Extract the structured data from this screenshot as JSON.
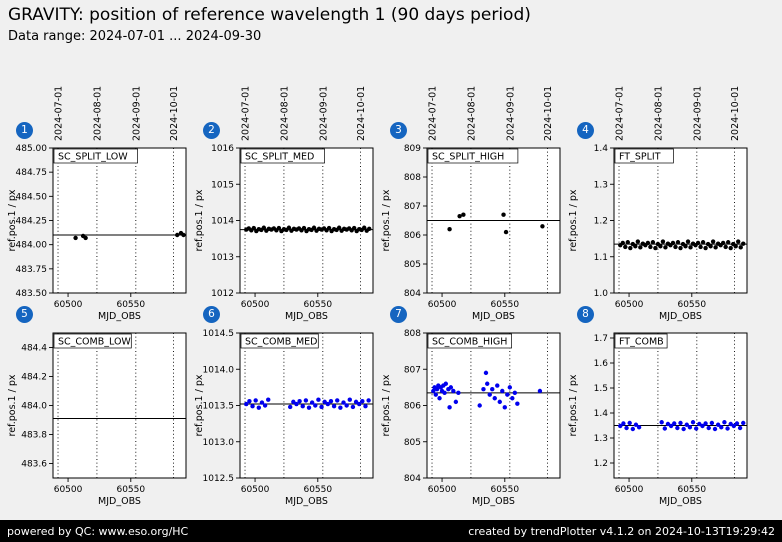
{
  "header": {
    "title": "GRAVITY: position of reference wavelength 1 (90 days period)",
    "subtitle": "Data range: 2024-07-01 ... 2024-09-30"
  },
  "footer": {
    "left": "powered by QC: www.eso.org/HC",
    "right": "created by trendPlotter v4.1.2 on 2024-10-13T19:29:42"
  },
  "colors": {
    "background": "#f0f0f0",
    "badge": "#1565c0",
    "top_row_points": "#000000",
    "bottom_row_points": "#0000ee",
    "footer_bg": "#000000",
    "footer_text": "#ffffff",
    "plot_bg": "#ffffff"
  },
  "axes": {
    "xlabel": "MJD_OBS",
    "ylabel": "ref.pos.1 / px",
    "xlim": [
      60488,
      60594
    ],
    "xticks": [
      60500,
      60550
    ],
    "xtick_labels": [
      "60500",
      "60550"
    ],
    "month_gridlines_mjd": [
      60492,
      60523,
      60554,
      60584
    ],
    "month_labels": [
      "2024-07-01",
      "2024-08-01",
      "2024-09-01",
      "2024-10-01"
    ],
    "grid": "vertical-dotted",
    "legend": "none"
  },
  "chart_data": [
    {
      "type": "scatter",
      "badge": "1",
      "label": "SC_SPLIT_LOW",
      "row": 0,
      "ylim": [
        483.5,
        485.0
      ],
      "ytick_vals": [
        485.0,
        484.75,
        484.5,
        484.25,
        484.0,
        483.75,
        483.5
      ],
      "ytick_labels": [
        "485.00",
        "484.75",
        "484.50",
        "484.25",
        "484.00",
        "483.75",
        "483.50"
      ],
      "line": 484.1,
      "color": "#000000",
      "points": [
        [
          60506,
          484.07
        ],
        [
          60512,
          484.09
        ],
        [
          60514,
          484.07
        ],
        [
          60587,
          484.1
        ],
        [
          60590,
          484.12
        ],
        [
          60592,
          484.1
        ]
      ]
    },
    {
      "type": "scatter",
      "badge": "2",
      "label": "SC_SPLIT_MED",
      "row": 0,
      "ylim": [
        1012,
        1016
      ],
      "ytick_vals": [
        1016,
        1015,
        1014,
        1013,
        1012
      ],
      "ytick_labels": [
        "1016",
        "1015",
        "1014",
        "1013",
        "1012"
      ],
      "line": 1013.75,
      "color": "#000000",
      "points": [
        [
          60493,
          1013.75
        ],
        [
          60495,
          1013.78
        ],
        [
          60497,
          1013.73
        ],
        [
          60499,
          1013.79
        ],
        [
          60501,
          1013.71
        ],
        [
          60503,
          1013.76
        ],
        [
          60505,
          1013.74
        ],
        [
          60507,
          1013.8
        ],
        [
          60509,
          1013.72
        ],
        [
          60511,
          1013.77
        ],
        [
          60513,
          1013.75
        ],
        [
          60515,
          1013.78
        ],
        [
          60517,
          1013.73
        ],
        [
          60519,
          1013.79
        ],
        [
          60521,
          1013.71
        ],
        [
          60523,
          1013.76
        ],
        [
          60525,
          1013.74
        ],
        [
          60527,
          1013.8
        ],
        [
          60529,
          1013.72
        ],
        [
          60531,
          1013.77
        ],
        [
          60533,
          1013.75
        ],
        [
          60535,
          1013.78
        ],
        [
          60537,
          1013.73
        ],
        [
          60539,
          1013.79
        ],
        [
          60541,
          1013.71
        ],
        [
          60543,
          1013.76
        ],
        [
          60545,
          1013.74
        ],
        [
          60547,
          1013.8
        ],
        [
          60549,
          1013.72
        ],
        [
          60551,
          1013.77
        ],
        [
          60553,
          1013.75
        ],
        [
          60555,
          1013.78
        ],
        [
          60557,
          1013.73
        ],
        [
          60559,
          1013.79
        ],
        [
          60561,
          1013.71
        ],
        [
          60563,
          1013.76
        ],
        [
          60565,
          1013.74
        ],
        [
          60567,
          1013.8
        ],
        [
          60569,
          1013.72
        ],
        [
          60571,
          1013.77
        ],
        [
          60573,
          1013.75
        ],
        [
          60575,
          1013.78
        ],
        [
          60577,
          1013.73
        ],
        [
          60579,
          1013.79
        ],
        [
          60581,
          1013.71
        ],
        [
          60583,
          1013.76
        ],
        [
          60585,
          1013.74
        ],
        [
          60587,
          1013.8
        ],
        [
          60589,
          1013.72
        ],
        [
          60591,
          1013.77
        ]
      ]
    },
    {
      "type": "scatter",
      "badge": "3",
      "label": "SC_SPLIT_HIGH",
      "row": 0,
      "ylim": [
        804,
        809
      ],
      "ytick_vals": [
        809,
        808,
        807,
        806,
        805,
        804
      ],
      "ytick_labels": [
        "809",
        "808",
        "807",
        "806",
        "805",
        "804"
      ],
      "line": 806.5,
      "color": "#000000",
      "points": [
        [
          60506,
          806.2
        ],
        [
          60514,
          806.65
        ],
        [
          60517,
          806.7
        ],
        [
          60549,
          806.7
        ],
        [
          60551,
          806.1
        ],
        [
          60580,
          806.3
        ]
      ]
    },
    {
      "type": "scatter",
      "badge": "4",
      "label": "FT_SPLIT",
      "row": 0,
      "ylim": [
        1.0,
        1.4
      ],
      "ytick_vals": [
        1.4,
        1.3,
        1.2,
        1.1,
        1.0
      ],
      "ytick_labels": [
        "1.4",
        "1.3",
        "1.2",
        "1.1",
        "1.0"
      ],
      "line": 1.135,
      "color": "#000000",
      "points": [
        [
          60493,
          1.132
        ],
        [
          60495,
          1.138
        ],
        [
          60497,
          1.127
        ],
        [
          60499,
          1.14
        ],
        [
          60501,
          1.124
        ],
        [
          60503,
          1.135
        ],
        [
          60505,
          1.129
        ],
        [
          60507,
          1.142
        ],
        [
          60509,
          1.126
        ],
        [
          60511,
          1.136
        ],
        [
          60513,
          1.132
        ],
        [
          60515,
          1.138
        ],
        [
          60517,
          1.127
        ],
        [
          60519,
          1.14
        ],
        [
          60521,
          1.124
        ],
        [
          60523,
          1.135
        ],
        [
          60525,
          1.129
        ],
        [
          60527,
          1.142
        ],
        [
          60529,
          1.126
        ],
        [
          60531,
          1.136
        ],
        [
          60533,
          1.132
        ],
        [
          60535,
          1.138
        ],
        [
          60537,
          1.127
        ],
        [
          60539,
          1.14
        ],
        [
          60541,
          1.124
        ],
        [
          60543,
          1.135
        ],
        [
          60545,
          1.129
        ],
        [
          60547,
          1.142
        ],
        [
          60549,
          1.126
        ],
        [
          60551,
          1.136
        ],
        [
          60553,
          1.132
        ],
        [
          60555,
          1.138
        ],
        [
          60557,
          1.127
        ],
        [
          60559,
          1.14
        ],
        [
          60561,
          1.124
        ],
        [
          60563,
          1.135
        ],
        [
          60565,
          1.129
        ],
        [
          60567,
          1.142
        ],
        [
          60569,
          1.126
        ],
        [
          60571,
          1.136
        ],
        [
          60573,
          1.132
        ],
        [
          60575,
          1.138
        ],
        [
          60577,
          1.127
        ],
        [
          60579,
          1.14
        ],
        [
          60581,
          1.124
        ],
        [
          60583,
          1.135
        ],
        [
          60585,
          1.129
        ],
        [
          60587,
          1.142
        ],
        [
          60589,
          1.126
        ],
        [
          60591,
          1.136
        ]
      ]
    },
    {
      "type": "scatter",
      "badge": "5",
      "label": "SC_COMB_LOW",
      "row": 1,
      "ylim": [
        483.5,
        484.5
      ],
      "ytick_vals": [
        484.4,
        484.2,
        484.0,
        483.8,
        483.6
      ],
      "ytick_labels": [
        "484.4",
        "484.2",
        "484.0",
        "483.8",
        "483.6"
      ],
      "line": 483.91,
      "color": "#0000ee",
      "points": []
    },
    {
      "type": "scatter",
      "badge": "6",
      "label": "SC_COMB_MED",
      "row": 1,
      "ylim": [
        1012.5,
        1014.5
      ],
      "ytick_vals": [
        1014.5,
        1014.0,
        1013.5,
        1013.0,
        1012.5
      ],
      "ytick_labels": [
        "1014.5",
        "1014.0",
        "1013.5",
        "1013.0",
        "1012.5"
      ],
      "line": 1013.52,
      "color": "#0000ee",
      "points": [
        [
          60493,
          1013.52
        ],
        [
          60495.5,
          1013.56
        ],
        [
          60498,
          1013.49
        ],
        [
          60500.5,
          1013.57
        ],
        [
          60503,
          1013.47
        ],
        [
          60505.5,
          1013.54
        ],
        [
          60508,
          1013.5
        ],
        [
          60510.5,
          1013.58
        ],
        [
          60528,
          1013.48
        ],
        [
          60530.5,
          1013.55
        ],
        [
          60533,
          1013.52
        ],
        [
          60535.5,
          1013.56
        ],
        [
          60538,
          1013.49
        ],
        [
          60540.5,
          1013.57
        ],
        [
          60543,
          1013.47
        ],
        [
          60545.5,
          1013.54
        ],
        [
          60548,
          1013.5
        ],
        [
          60550.5,
          1013.58
        ],
        [
          60553,
          1013.48
        ],
        [
          60555.5,
          1013.55
        ],
        [
          60558,
          1013.52
        ],
        [
          60560.5,
          1013.56
        ],
        [
          60563,
          1013.49
        ],
        [
          60565.5,
          1013.57
        ],
        [
          60568,
          1013.47
        ],
        [
          60570.5,
          1013.54
        ],
        [
          60573,
          1013.5
        ],
        [
          60575.5,
          1013.58
        ],
        [
          60578,
          1013.48
        ],
        [
          60580.5,
          1013.55
        ],
        [
          60583,
          1013.52
        ],
        [
          60585.5,
          1013.56
        ],
        [
          60588,
          1013.49
        ],
        [
          60590.5,
          1013.57
        ]
      ]
    },
    {
      "type": "scatter",
      "badge": "7",
      "label": "SC_COMB_HIGH",
      "row": 1,
      "ylim": [
        804,
        808
      ],
      "ytick_vals": [
        808,
        807,
        806,
        805,
        804
      ],
      "ytick_labels": [
        "808",
        "807",
        "806",
        "805",
        "804"
      ],
      "line": 806.35,
      "color": "#0000ee",
      "points": [
        [
          60493,
          806.4
        ],
        [
          60494,
          806.5
        ],
        [
          60495,
          806.3
        ],
        [
          60496,
          806.45
        ],
        [
          60497,
          806.55
        ],
        [
          60498,
          806.2
        ],
        [
          60499,
          806.5
        ],
        [
          60500,
          806.4
        ],
        [
          60501,
          806.55
        ],
        [
          60502,
          806.35
        ],
        [
          60503,
          806.6
        ],
        [
          60505,
          806.45
        ],
        [
          60506,
          805.95
        ],
        [
          60507,
          806.5
        ],
        [
          60509,
          806.4
        ],
        [
          60511,
          806.1
        ],
        [
          60513,
          806.35
        ],
        [
          60530,
          806.0
        ],
        [
          60533,
          806.45
        ],
        [
          60535,
          806.9
        ],
        [
          60536,
          806.6
        ],
        [
          60538,
          806.3
        ],
        [
          60540,
          806.45
        ],
        [
          60542,
          806.2
        ],
        [
          60544,
          806.55
        ],
        [
          60546,
          806.1
        ],
        [
          60548,
          806.4
        ],
        [
          60550,
          805.95
        ],
        [
          60552,
          806.3
        ],
        [
          60554,
          806.5
        ],
        [
          60556,
          806.2
        ],
        [
          60558,
          806.35
        ],
        [
          60560,
          806.05
        ],
        [
          60578,
          806.4
        ]
      ]
    },
    {
      "type": "scatter",
      "badge": "8",
      "label": "FT_COMB",
      "row": 1,
      "ylim": [
        1.14,
        1.72
      ],
      "ytick_vals": [
        1.7,
        1.6,
        1.5,
        1.4,
        1.3,
        1.2
      ],
      "ytick_labels": [
        "1.7",
        "1.6",
        "1.5",
        "1.4",
        "1.3",
        "1.2"
      ],
      "line": 1.35,
      "color": "#0000ee",
      "points": [
        [
          60493,
          1.348
        ],
        [
          60495.5,
          1.358
        ],
        [
          60498,
          1.34
        ],
        [
          60500.5,
          1.36
        ],
        [
          60503,
          1.336
        ],
        [
          60505.5,
          1.353
        ],
        [
          60508,
          1.343
        ],
        [
          60526,
          1.363
        ],
        [
          60528.5,
          1.338
        ],
        [
          60531,
          1.356
        ],
        [
          60533.5,
          1.348
        ],
        [
          60536,
          1.358
        ],
        [
          60538.5,
          1.34
        ],
        [
          60541,
          1.36
        ],
        [
          60543.5,
          1.336
        ],
        [
          60546,
          1.353
        ],
        [
          60548.5,
          1.343
        ],
        [
          60551,
          1.363
        ],
        [
          60553.5,
          1.338
        ],
        [
          60556,
          1.356
        ],
        [
          60558.5,
          1.348
        ],
        [
          60561,
          1.358
        ],
        [
          60563.5,
          1.34
        ],
        [
          60566,
          1.36
        ],
        [
          60568.5,
          1.336
        ],
        [
          60571,
          1.353
        ],
        [
          60573.5,
          1.343
        ],
        [
          60576,
          1.363
        ],
        [
          60578.5,
          1.338
        ],
        [
          60581,
          1.356
        ],
        [
          60583.5,
          1.348
        ],
        [
          60586,
          1.358
        ],
        [
          60588.5,
          1.34
        ],
        [
          60591,
          1.36
        ]
      ]
    }
  ]
}
